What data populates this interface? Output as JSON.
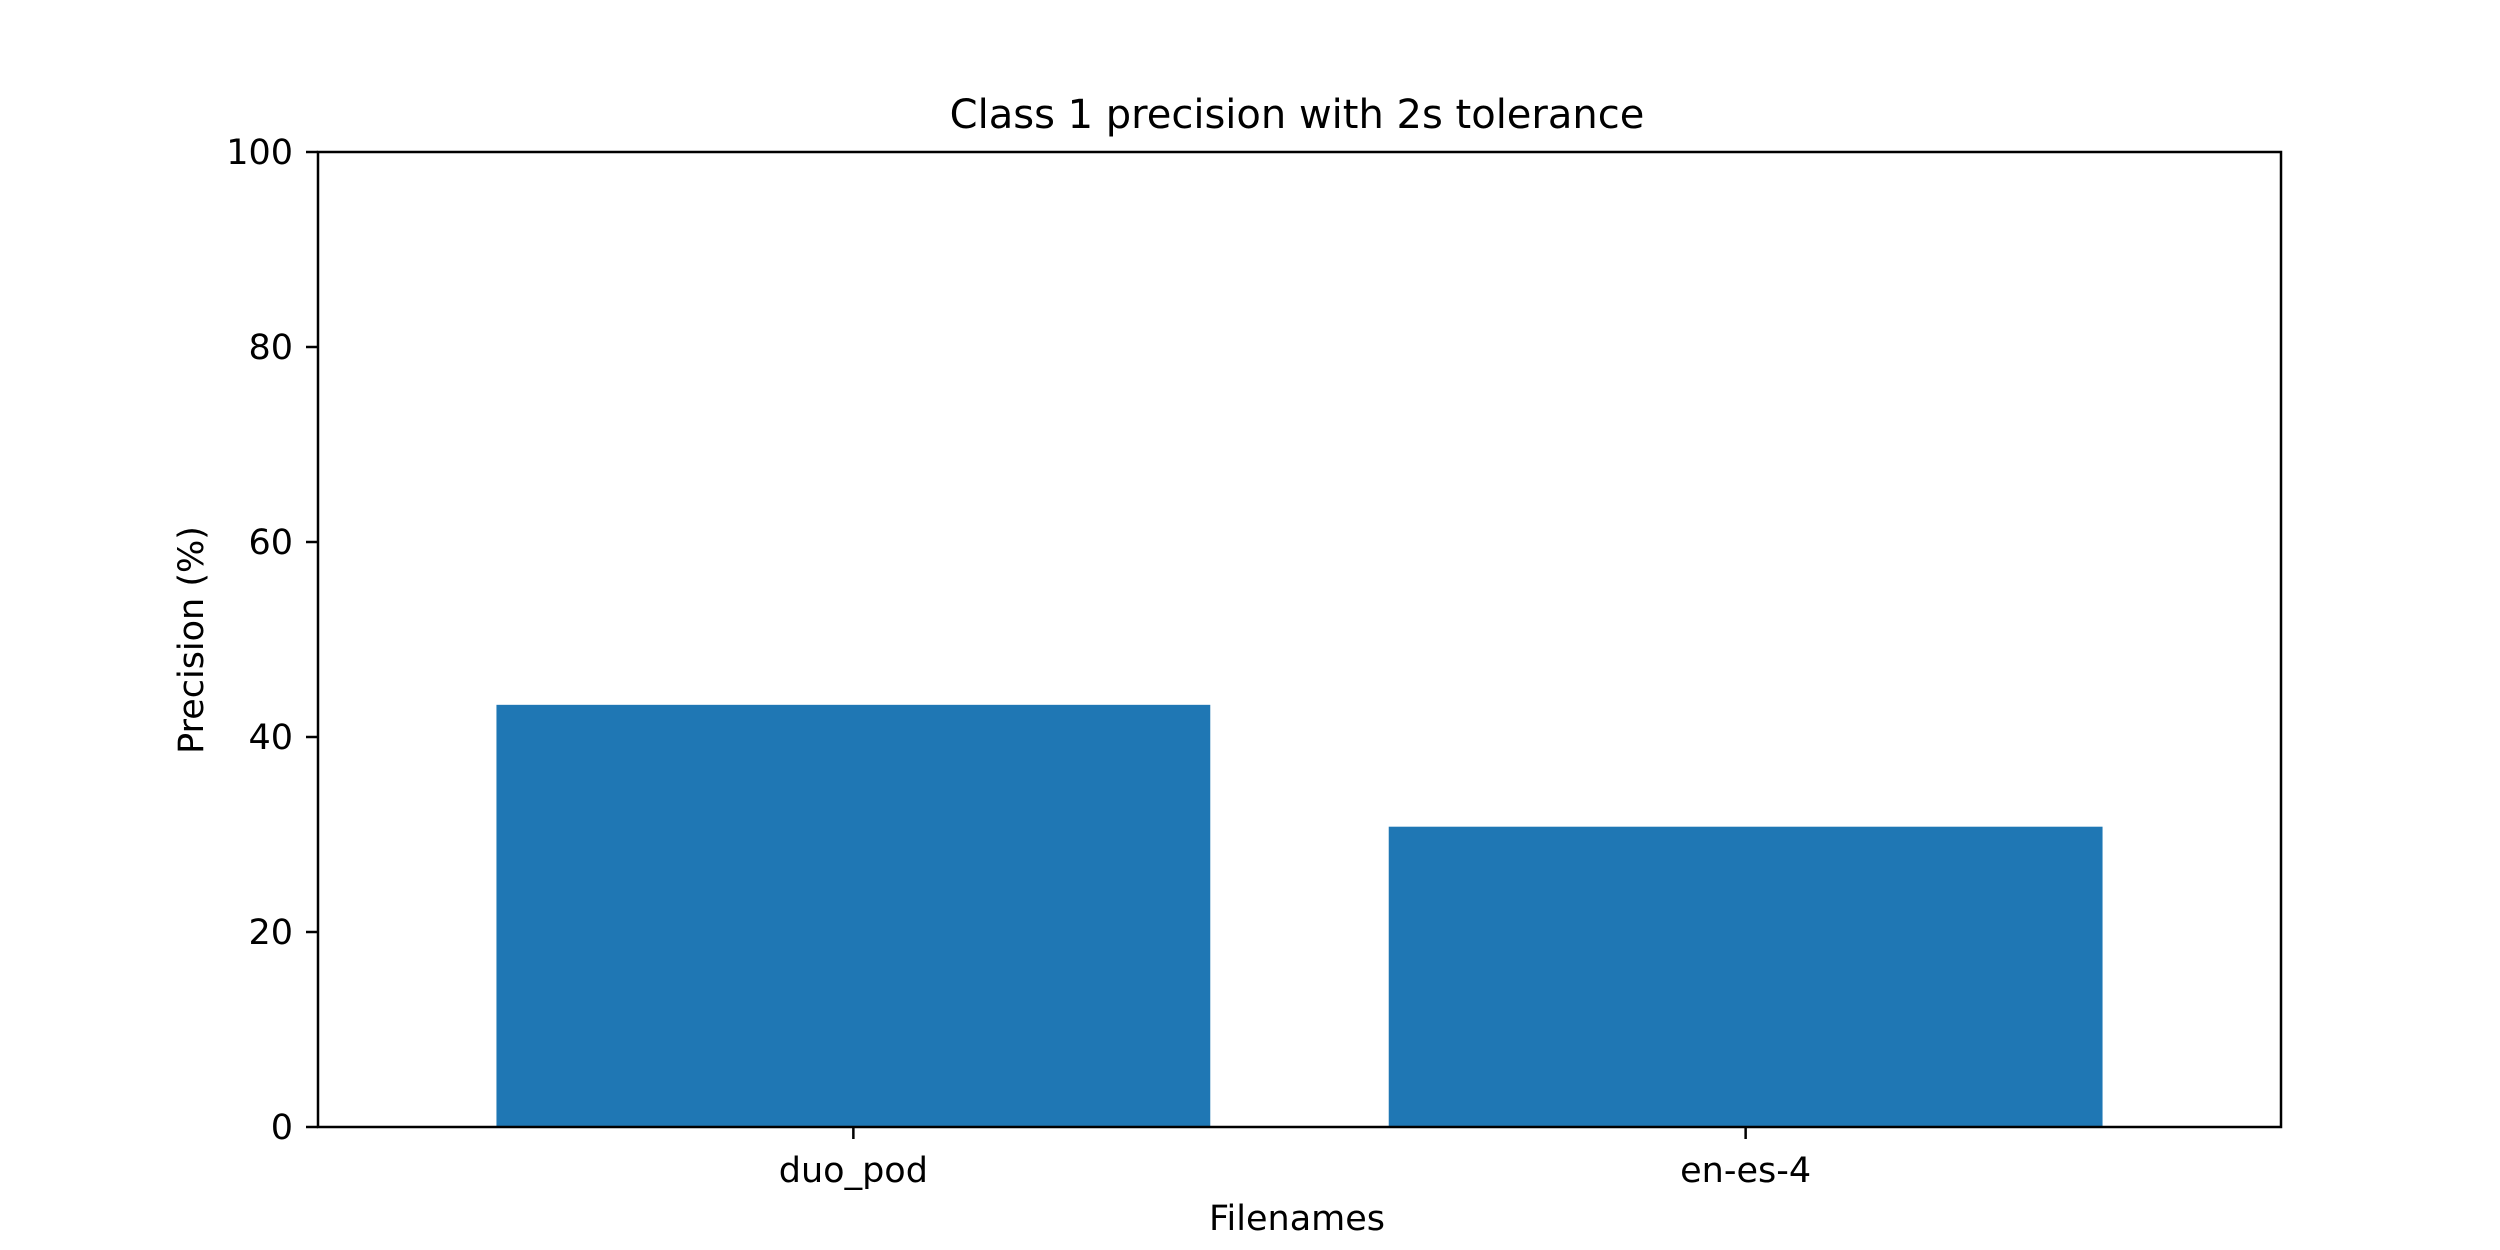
{
  "chart_data": {
    "type": "bar",
    "title": "Class 1 precision with 2s tolerance",
    "xlabel": "Filenames",
    "ylabel": "Precision (%)",
    "categories": [
      "duo_pod",
      "en-es-4"
    ],
    "values": [
      43.3,
      30.8
    ],
    "ylim": [
      0,
      100
    ],
    "yticks": [
      "0",
      "20",
      "40",
      "60",
      "80",
      "100"
    ],
    "bar_color": "#1f77b4",
    "grid": false,
    "legend": "none"
  }
}
